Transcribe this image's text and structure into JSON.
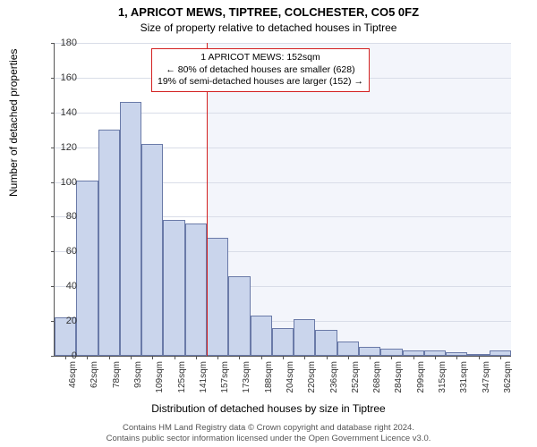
{
  "chart": {
    "type": "histogram",
    "title1": "1, APRICOT MEWS, TIPTREE, COLCHESTER, CO5 0FZ",
    "title2": "Size of property relative to detached houses in Tiptree",
    "ylabel": "Number of detached properties",
    "xlabel": "Distribution of detached houses by size in Tiptree",
    "ylim": [
      0,
      180
    ],
    "ytick_step": 20,
    "xticks": [
      "46sqm",
      "62sqm",
      "78sqm",
      "93sqm",
      "109sqm",
      "125sqm",
      "141sqm",
      "157sqm",
      "173sqm",
      "188sqm",
      "204sqm",
      "220sqm",
      "236sqm",
      "252sqm",
      "268sqm",
      "284sqm",
      "299sqm",
      "315sqm",
      "331sqm",
      "347sqm",
      "362sqm"
    ],
    "values": [
      22,
      101,
      130,
      146,
      122,
      78,
      76,
      68,
      46,
      23,
      16,
      21,
      15,
      8,
      5,
      4,
      3,
      3,
      2,
      1,
      3
    ],
    "bar_color": "#cad5ec",
    "bar_border_color": "#6a7aa8",
    "grid_color": "#d9dde8",
    "background_color": "#ffffff",
    "shaded_color": "#f3f5fb",
    "shaded_start_index": 7,
    "refline_color": "#d32020",
    "refline_index": 7,
    "annotation": {
      "line1": "1 APRICOT MEWS: 152sqm",
      "line2": "← 80% of detached houses are smaller (628)",
      "line3": "19% of semi-detached houses are larger (152) →"
    },
    "footer1": "Contains HM Land Registry data © Crown copyright and database right 2024.",
    "footer2": "Contains public sector information licensed under the Open Government Licence v3.0."
  }
}
